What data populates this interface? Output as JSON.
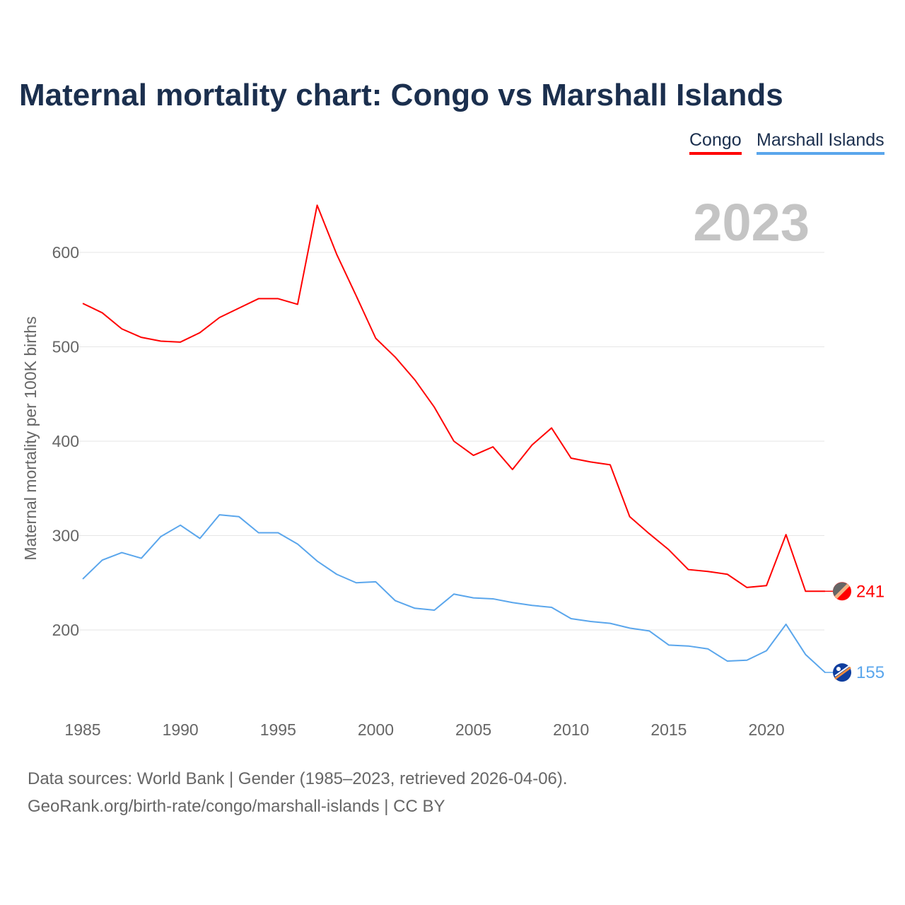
{
  "title": "Maternal mortality chart: Congo vs Marshall Islands",
  "source_line1": "Data sources: World Bank | Gender (1985–2023, retrieved 2026-04-06).",
  "source_line2": "GeoRank.org/birth-rate/congo/marshall-islands | CC BY",
  "chart_data": {
    "type": "line",
    "title": "Maternal mortality chart: Congo vs Marshall Islands",
    "ylabel": "Maternal mortality per 100K births",
    "xlabel": "",
    "year_label": "2023",
    "xlim": [
      1985,
      2023
    ],
    "ylim": [
      130,
      660
    ],
    "yticks": [
      200,
      300,
      400,
      500,
      600
    ],
    "xticks": [
      1985,
      1990,
      1995,
      2000,
      2005,
      2010,
      2015,
      2020
    ],
    "grid": true,
    "legend": "top-right",
    "x": [
      1985,
      1986,
      1987,
      1988,
      1989,
      1990,
      1991,
      1992,
      1993,
      1994,
      1995,
      1996,
      1997,
      1998,
      1999,
      2000,
      2001,
      2002,
      2003,
      2004,
      2005,
      2006,
      2007,
      2008,
      2009,
      2010,
      2011,
      2012,
      2013,
      2014,
      2015,
      2016,
      2017,
      2018,
      2019,
      2020,
      2021,
      2022,
      2023
    ],
    "series": [
      {
        "name": "Congo",
        "color": "#ff0000",
        "end_label": "241",
        "values": [
          546,
          536,
          519,
          510,
          506,
          505,
          515,
          531,
          541,
          551,
          551,
          545,
          650,
          598,
          554,
          509,
          489,
          465,
          436,
          400,
          385,
          394,
          370,
          396,
          414,
          382,
          378,
          375,
          320,
          302,
          285,
          264,
          262,
          259,
          245,
          247,
          301,
          241,
          241
        ]
      },
      {
        "name": "Marshall Islands",
        "color": "#5aa6ec",
        "end_label": "155",
        "values": [
          254,
          274,
          282,
          276,
          299,
          311,
          297,
          322,
          320,
          303,
          303,
          291,
          273,
          259,
          250,
          251,
          231,
          223,
          221,
          238,
          234,
          233,
          229,
          226,
          224,
          212,
          209,
          207,
          202,
          199,
          184,
          183,
          180,
          167,
          168,
          178,
          206,
          174,
          155
        ]
      }
    ]
  }
}
